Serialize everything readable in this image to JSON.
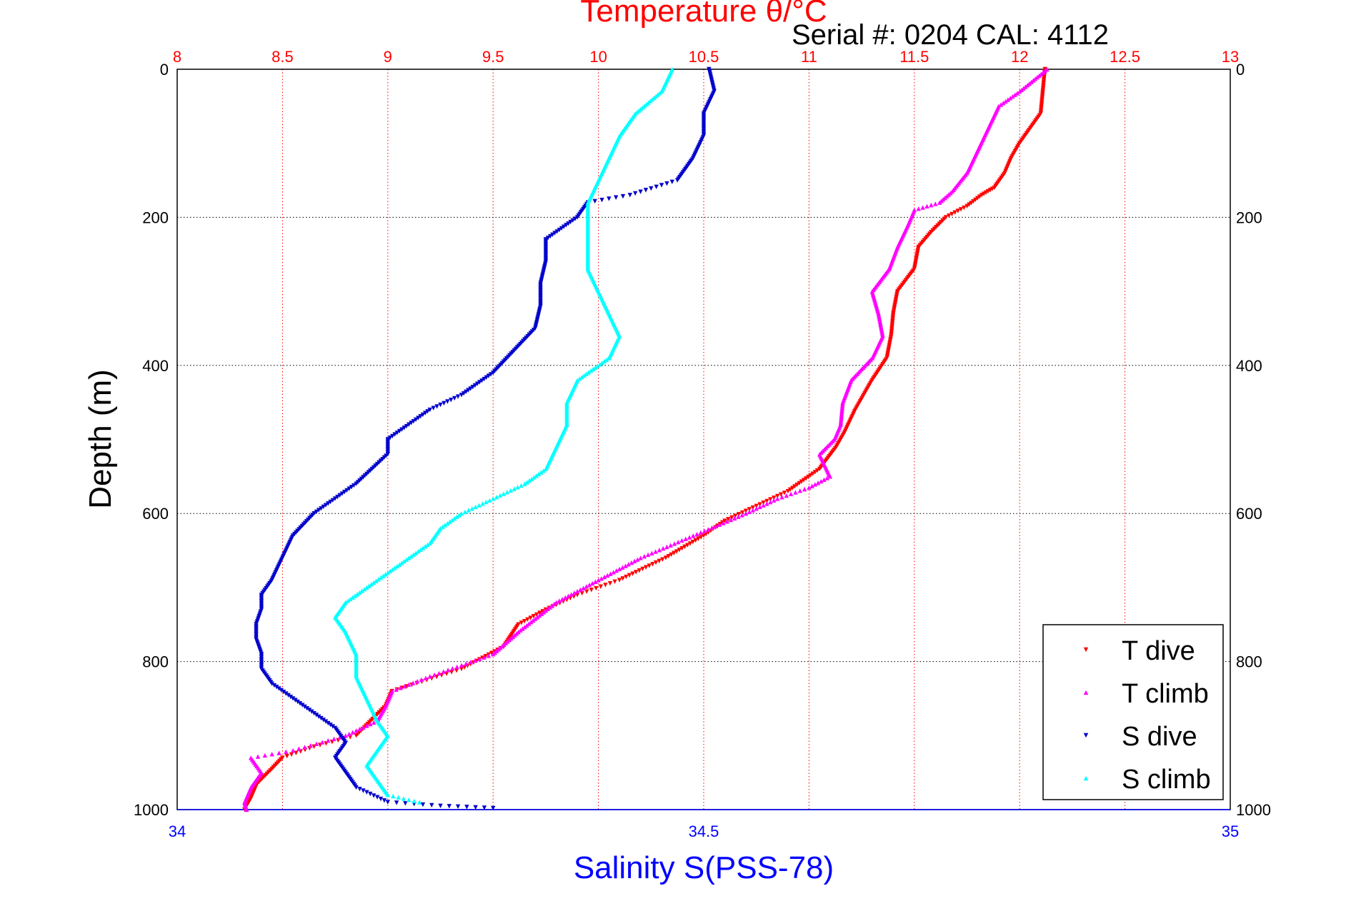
{
  "chart_data": {
    "type": "scatter",
    "title": "Temperature θ/°C",
    "subtitle": "Serial #: 0204  CAL: 4112",
    "xlabel": "Salinity S(PSS-78)",
    "ylabel": "Depth (m)",
    "temperature_axis": {
      "range": [
        8,
        13
      ],
      "ticks": [
        8,
        8.5,
        9,
        9.5,
        10,
        10.5,
        11,
        11.5,
        12,
        12.5,
        13
      ],
      "tick_labels": [
        "8",
        "8.5",
        "9",
        "9.5",
        "10",
        "10.5",
        "11",
        "11.5",
        "12",
        "12.5",
        "13"
      ]
    },
    "salinity_axis": {
      "range": [
        34,
        35
      ],
      "ticks": [
        34,
        34.5,
        35
      ],
      "tick_labels": [
        "34",
        "34.5",
        "35"
      ]
    },
    "depth_axis": {
      "range": [
        0,
        1000
      ],
      "reversed": true,
      "ticks": [
        0,
        200,
        400,
        600,
        800,
        1000
      ],
      "tick_labels": [
        "0",
        "200",
        "400",
        "600",
        "800",
        "1000"
      ]
    },
    "grid": true,
    "legend_position": "bottom-right",
    "colors": {
      "temperature_axis": "#ff0000",
      "salinity_axis": "#0000ff",
      "t_dive": "#ff0000",
      "t_climb": "#ff00ff",
      "s_dive": "#0000cc",
      "s_climb": "#00ffff"
    },
    "series": [
      {
        "name": "T dive",
        "axis": "temperature",
        "color": "#ff0000",
        "points": [
          [
            12.12,
            0
          ],
          [
            12.11,
            30
          ],
          [
            12.1,
            60
          ],
          [
            12.05,
            80
          ],
          [
            12.0,
            100
          ],
          [
            11.96,
            120
          ],
          [
            11.93,
            140
          ],
          [
            11.88,
            160
          ],
          [
            11.82,
            170
          ],
          [
            11.75,
            185
          ],
          [
            11.65,
            200
          ],
          [
            11.58,
            220
          ],
          [
            11.52,
            240
          ],
          [
            11.5,
            270
          ],
          [
            11.42,
            300
          ],
          [
            11.4,
            330
          ],
          [
            11.39,
            360
          ],
          [
            11.37,
            390
          ],
          [
            11.3,
            420
          ],
          [
            11.22,
            460
          ],
          [
            11.17,
            490
          ],
          [
            11.13,
            510
          ],
          [
            11.05,
            540
          ],
          [
            10.9,
            570
          ],
          [
            10.75,
            590
          ],
          [
            10.6,
            610
          ],
          [
            10.5,
            630
          ],
          [
            10.32,
            660
          ],
          [
            10.1,
            690
          ],
          [
            9.9,
            710
          ],
          [
            9.75,
            730
          ],
          [
            9.62,
            750
          ],
          [
            9.55,
            780
          ],
          [
            9.35,
            810
          ],
          [
            9.02,
            840
          ],
          [
            8.99,
            860
          ],
          [
            8.92,
            880
          ],
          [
            8.85,
            900
          ],
          [
            8.65,
            915
          ],
          [
            8.5,
            930
          ],
          [
            8.45,
            945
          ],
          [
            8.38,
            965
          ],
          [
            8.35,
            985
          ],
          [
            8.32,
            1000
          ]
        ]
      },
      {
        "name": "T climb",
        "axis": "temperature",
        "color": "#ff00ff",
        "points": [
          [
            12.13,
            0
          ],
          [
            12.0,
            30
          ],
          [
            11.9,
            50
          ],
          [
            11.85,
            80
          ],
          [
            11.8,
            110
          ],
          [
            11.75,
            140
          ],
          [
            11.68,
            165
          ],
          [
            11.62,
            180
          ],
          [
            11.5,
            190
          ],
          [
            11.47,
            210
          ],
          [
            11.42,
            240
          ],
          [
            11.38,
            270
          ],
          [
            11.3,
            300
          ],
          [
            11.33,
            330
          ],
          [
            11.35,
            360
          ],
          [
            11.3,
            390
          ],
          [
            11.2,
            420
          ],
          [
            11.16,
            450
          ],
          [
            11.15,
            480
          ],
          [
            11.12,
            500
          ],
          [
            11.05,
            520
          ],
          [
            11.1,
            550
          ],
          [
            11.0,
            565
          ],
          [
            10.85,
            580
          ],
          [
            10.7,
            600
          ],
          [
            10.45,
            630
          ],
          [
            10.2,
            660
          ],
          [
            10.0,
            690
          ],
          [
            9.8,
            720
          ],
          [
            9.62,
            760
          ],
          [
            9.5,
            790
          ],
          [
            9.2,
            820
          ],
          [
            9.02,
            840
          ],
          [
            8.99,
            860
          ],
          [
            8.95,
            880
          ],
          [
            8.8,
            900
          ],
          [
            8.55,
            920
          ],
          [
            8.35,
            930
          ],
          [
            8.4,
            950
          ],
          [
            8.35,
            970
          ],
          [
            8.32,
            990
          ],
          [
            8.33,
            1000
          ]
        ]
      },
      {
        "name": "S dive",
        "axis": "salinity",
        "color": "#0000cc",
        "points": [
          [
            34.505,
            0
          ],
          [
            34.51,
            30
          ],
          [
            34.5,
            60
          ],
          [
            34.5,
            90
          ],
          [
            34.49,
            120
          ],
          [
            34.475,
            150
          ],
          [
            34.43,
            170
          ],
          [
            34.39,
            180
          ],
          [
            34.38,
            200
          ],
          [
            34.35,
            230
          ],
          [
            34.35,
            260
          ],
          [
            34.345,
            290
          ],
          [
            34.345,
            320
          ],
          [
            34.34,
            350
          ],
          [
            34.32,
            380
          ],
          [
            34.3,
            410
          ],
          [
            34.27,
            440
          ],
          [
            34.24,
            460
          ],
          [
            34.22,
            480
          ],
          [
            34.2,
            500
          ],
          [
            34.2,
            520
          ],
          [
            34.185,
            540
          ],
          [
            34.17,
            560
          ],
          [
            34.15,
            580
          ],
          [
            34.13,
            600
          ],
          [
            34.11,
            630
          ],
          [
            34.1,
            660
          ],
          [
            34.09,
            690
          ],
          [
            34.08,
            710
          ],
          [
            34.08,
            730
          ],
          [
            34.075,
            750
          ],
          [
            34.075,
            770
          ],
          [
            34.08,
            790
          ],
          [
            34.08,
            810
          ],
          [
            34.09,
            830
          ],
          [
            34.11,
            850
          ],
          [
            34.13,
            870
          ],
          [
            34.15,
            890
          ],
          [
            34.16,
            910
          ],
          [
            34.15,
            930
          ],
          [
            34.16,
            950
          ],
          [
            34.17,
            970
          ],
          [
            34.2,
            990
          ],
          [
            34.25,
            995
          ],
          [
            34.3,
            998
          ]
        ]
      },
      {
        "name": "S climb",
        "axis": "salinity",
        "color": "#00ffff",
        "points": [
          [
            34.47,
            0
          ],
          [
            34.46,
            30
          ],
          [
            34.435,
            60
          ],
          [
            34.42,
            90
          ],
          [
            34.41,
            120
          ],
          [
            34.4,
            150
          ],
          [
            34.39,
            180
          ],
          [
            34.39,
            210
          ],
          [
            34.39,
            240
          ],
          [
            34.39,
            270
          ],
          [
            34.4,
            300
          ],
          [
            34.41,
            330
          ],
          [
            34.42,
            360
          ],
          [
            34.41,
            390
          ],
          [
            34.38,
            420
          ],
          [
            34.37,
            450
          ],
          [
            34.37,
            480
          ],
          [
            34.36,
            510
          ],
          [
            34.35,
            540
          ],
          [
            34.33,
            560
          ],
          [
            34.3,
            580
          ],
          [
            34.27,
            600
          ],
          [
            34.25,
            620
          ],
          [
            34.24,
            640
          ],
          [
            34.22,
            660
          ],
          [
            34.2,
            680
          ],
          [
            34.18,
            700
          ],
          [
            34.16,
            720
          ],
          [
            34.15,
            740
          ],
          [
            34.16,
            760
          ],
          [
            34.17,
            790
          ],
          [
            34.17,
            820
          ],
          [
            34.18,
            850
          ],
          [
            34.19,
            880
          ],
          [
            34.2,
            900
          ],
          [
            34.19,
            920
          ],
          [
            34.18,
            940
          ],
          [
            34.19,
            960
          ],
          [
            34.2,
            980
          ],
          [
            34.23,
            990
          ]
        ]
      }
    ]
  }
}
